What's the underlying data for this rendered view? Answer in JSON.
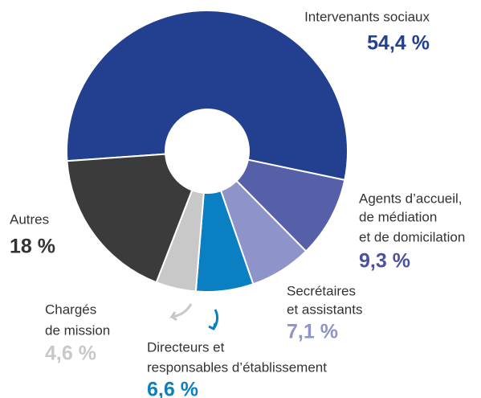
{
  "chart_data": {
    "type": "donut",
    "categories": [
      [
        "Intervenants sociaux"
      ],
      [
        "Agents d’accueil,",
        "de médiation",
        "et de domicilation"
      ],
      [
        "Secrétaires",
        "et assistants"
      ],
      [
        "Directeurs et",
        "responsables d’établissement"
      ],
      [
        "Chargés",
        "de mission"
      ],
      [
        "Autres"
      ]
    ],
    "values": [
      54.4,
      9.3,
      7.1,
      6.6,
      4.6,
      18
    ],
    "value_labels": [
      "54,4 %",
      "9,3 %",
      "7,1 %",
      "6,6 %",
      "4,6 %",
      "18 %"
    ],
    "colors": [
      "#233f8f",
      "#5560a9",
      "#8e93c9",
      "#0a80c3",
      "#c8c8c8",
      "#3b3b3b"
    ],
    "label_colors": [
      "#233f8f",
      "#4b519f",
      "#8e93c9",
      "#0a80c3",
      "#c8c8c8",
      "#333333"
    ]
  }
}
